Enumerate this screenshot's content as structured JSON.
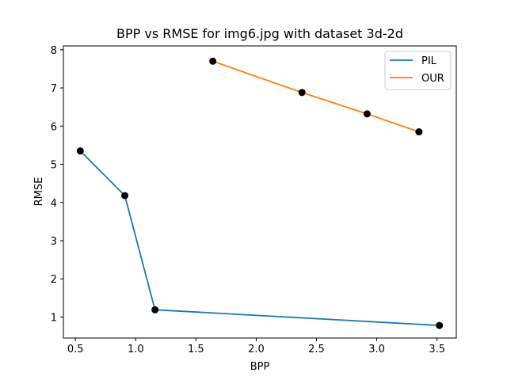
{
  "chart_data": {
    "type": "line",
    "title": "BPP vs RMSE for img6.jpg with dataset 3d-2d",
    "xlabel": "BPP",
    "ylabel": "RMSE",
    "xlim": [
      0.4,
      3.66
    ],
    "ylim": [
      0.45,
      8.1
    ],
    "xticks": [
      0.5,
      1.0,
      1.5,
      2.0,
      2.5,
      3.0,
      3.5
    ],
    "xtick_labels": [
      "0.5",
      "1.0",
      "1.5",
      "2.0",
      "2.5",
      "3.0",
      "3.5"
    ],
    "yticks": [
      1,
      2,
      3,
      4,
      5,
      6,
      7,
      8
    ],
    "ytick_labels": [
      "1",
      "2",
      "3",
      "4",
      "5",
      "6",
      "7",
      "8"
    ],
    "grid": false,
    "legend_position": "top-right",
    "series": [
      {
        "name": "PIL",
        "color": "#1f77b4",
        "x": [
          0.54,
          0.91,
          1.16,
          3.52
        ],
        "y": [
          5.35,
          4.18,
          1.19,
          0.78
        ]
      },
      {
        "name": "OUR",
        "color": "#ff7f0e",
        "x": [
          1.64,
          2.38,
          2.92,
          3.35
        ],
        "y": [
          7.7,
          6.88,
          6.32,
          5.85
        ]
      }
    ],
    "marker_color": "#000000"
  }
}
